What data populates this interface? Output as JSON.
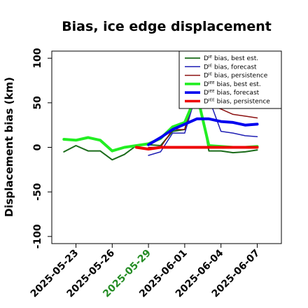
{
  "chart_data": {
    "type": "line",
    "title": "Bias, ice edge displacement",
    "ylabel": "Displacement bias (km)",
    "xlabel": "",
    "xlim": [
      "2025-05-21",
      "2025-06-09"
    ],
    "ylim": [
      -108,
      108
    ],
    "yticks": [
      -100,
      -50,
      0,
      50,
      100
    ],
    "xticks": [
      "2025-05-23",
      "2025-05-26",
      "2025-05-29",
      "2025-06-01",
      "2025-06-04",
      "2025-06-07"
    ],
    "highlight_tick": "2025-05-29",
    "highlight_color": "#228b22",
    "legend_position": "top-right",
    "series": [
      {
        "name": "Dᴵᴱ bias, best est.",
        "color": "#1a6b1a",
        "width": 2,
        "points": [
          [
            "2025-05-22",
            -5
          ],
          [
            "2025-05-23",
            2
          ],
          [
            "2025-05-24",
            -4
          ],
          [
            "2025-05-25",
            -4
          ],
          [
            "2025-05-26",
            -14
          ],
          [
            "2025-05-27",
            -8
          ],
          [
            "2025-05-28",
            2
          ],
          [
            "2025-05-29",
            3
          ],
          [
            "2025-05-30",
            2
          ],
          [
            "2025-05-31",
            18
          ],
          [
            "2025-06-01",
            20
          ],
          [
            "2025-06-02",
            68
          ],
          [
            "2025-06-03",
            -4
          ],
          [
            "2025-06-04",
            -4
          ],
          [
            "2025-06-05",
            -6
          ],
          [
            "2025-06-06",
            -5
          ],
          [
            "2025-06-07",
            -3
          ]
        ]
      },
      {
        "name": "Dᴵᴱ bias, forecast",
        "color": "#1f1fb4",
        "width": 1.5,
        "points": [
          [
            "2025-05-29",
            -9
          ],
          [
            "2025-05-30",
            -5
          ],
          [
            "2025-05-31",
            16
          ],
          [
            "2025-06-01",
            16
          ],
          [
            "2025-06-02",
            62
          ],
          [
            "2025-06-03",
            55
          ],
          [
            "2025-06-04",
            18
          ],
          [
            "2025-06-05",
            16
          ],
          [
            "2025-06-06",
            13
          ],
          [
            "2025-06-07",
            12
          ]
        ]
      },
      {
        "name": "Dᴵᴱ bias, persistence",
        "color": "#8b1010",
        "width": 1.5,
        "points": [
          [
            "2025-05-29",
            0
          ],
          [
            "2025-05-30",
            0
          ],
          [
            "2025-05-31",
            20
          ],
          [
            "2025-06-01",
            20
          ],
          [
            "2025-06-02",
            70
          ],
          [
            "2025-06-03",
            48
          ],
          [
            "2025-06-04",
            43
          ],
          [
            "2025-06-05",
            37
          ],
          [
            "2025-06-06",
            35
          ],
          [
            "2025-06-07",
            33
          ]
        ]
      },
      {
        "name": "Dᴵᴱᴱ bias, best est.",
        "color": "#22ee22",
        "width": 4,
        "points": [
          [
            "2025-05-22",
            9
          ],
          [
            "2025-05-23",
            8
          ],
          [
            "2025-05-24",
            11
          ],
          [
            "2025-05-25",
            8
          ],
          [
            "2025-05-26",
            -4
          ],
          [
            "2025-05-27",
            0
          ],
          [
            "2025-05-28",
            2
          ],
          [
            "2025-05-29",
            4
          ],
          [
            "2025-05-30",
            10
          ],
          [
            "2025-05-31",
            23
          ],
          [
            "2025-06-01",
            28
          ],
          [
            "2025-06-02",
            60
          ],
          [
            "2025-06-03",
            2
          ],
          [
            "2025-06-04",
            1
          ],
          [
            "2025-06-05",
            0
          ],
          [
            "2025-06-06",
            0
          ],
          [
            "2025-06-07",
            1
          ]
        ]
      },
      {
        "name": "Dᴵᴱᴱ bias, forecast",
        "color": "#0000ee",
        "width": 4,
        "points": [
          [
            "2025-05-29",
            3
          ],
          [
            "2025-05-30",
            11
          ],
          [
            "2025-05-31",
            20
          ],
          [
            "2025-06-01",
            26
          ],
          [
            "2025-06-02",
            32
          ],
          [
            "2025-06-03",
            32
          ],
          [
            "2025-06-04",
            29
          ],
          [
            "2025-06-05",
            28
          ],
          [
            "2025-06-06",
            25
          ],
          [
            "2025-06-07",
            26
          ]
        ]
      },
      {
        "name": "Dᴵᴱᴱ bias, persistence",
        "color": "#ee0000",
        "width": 4,
        "points": [
          [
            "2025-05-28",
            0
          ],
          [
            "2025-05-29",
            -2
          ],
          [
            "2025-05-30",
            0
          ],
          [
            "2025-05-31",
            0
          ],
          [
            "2025-06-01",
            0
          ],
          [
            "2025-06-02",
            0
          ],
          [
            "2025-06-03",
            0
          ],
          [
            "2025-06-04",
            0
          ],
          [
            "2025-06-05",
            0
          ],
          [
            "2025-06-06",
            0
          ],
          [
            "2025-06-07",
            0
          ]
        ]
      }
    ]
  }
}
